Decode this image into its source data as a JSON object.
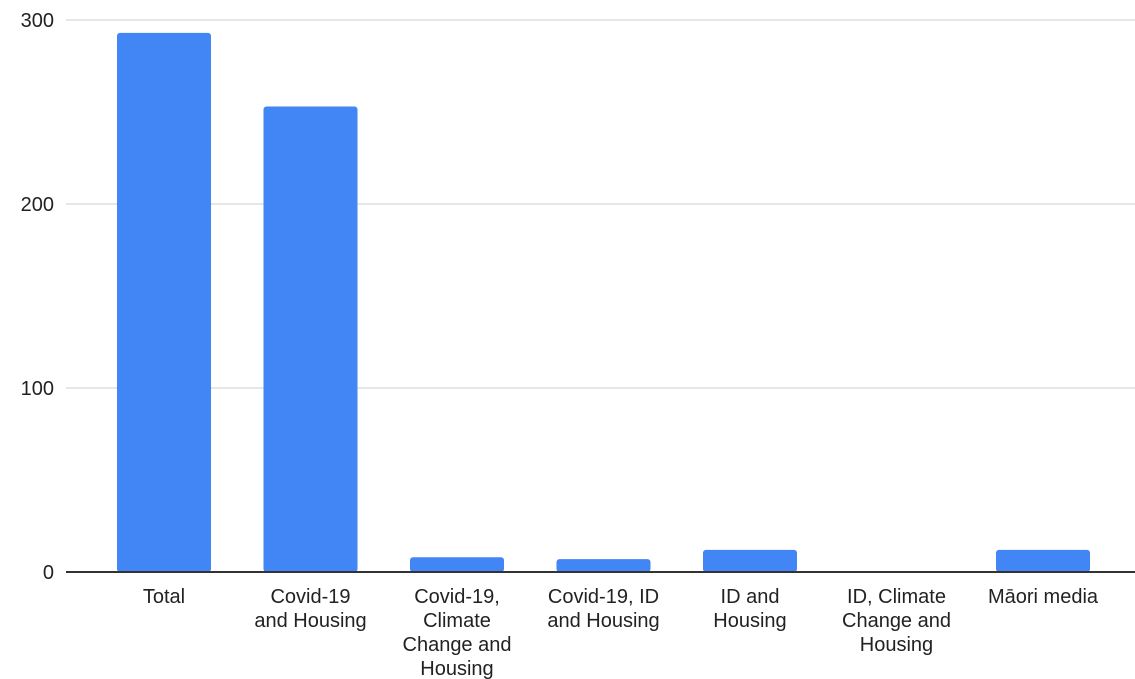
{
  "chart_data": {
    "type": "bar",
    "categories": [
      "Total",
      "Covid-19 and Housing",
      "Covid-19, Climate Change and Housing",
      "Covid-19, ID and Housing",
      "ID and Housing",
      "ID, Climate Change and Housing",
      "Māori media"
    ],
    "category_label_lines": [
      [
        "Total"
      ],
      [
        "Covid-19",
        "and Housing"
      ],
      [
        "Covid-19,",
        "Climate",
        "Change and",
        "Housing"
      ],
      [
        "Covid-19, ID",
        "and Housing"
      ],
      [
        "ID and",
        "Housing"
      ],
      [
        "ID, Climate",
        "Change and",
        "Housing"
      ],
      [
        "Māori media"
      ]
    ],
    "values": [
      293,
      253,
      8,
      7,
      12,
      0,
      12
    ],
    "ylim": [
      0,
      300
    ],
    "yticks": [
      0,
      100,
      200,
      300
    ],
    "title": "",
    "xlabel": "",
    "ylabel": "",
    "grid": true,
    "legend": "none",
    "bar_color": "#4285f4",
    "grid_color": "#cccccc",
    "axis_color": "#333333"
  }
}
